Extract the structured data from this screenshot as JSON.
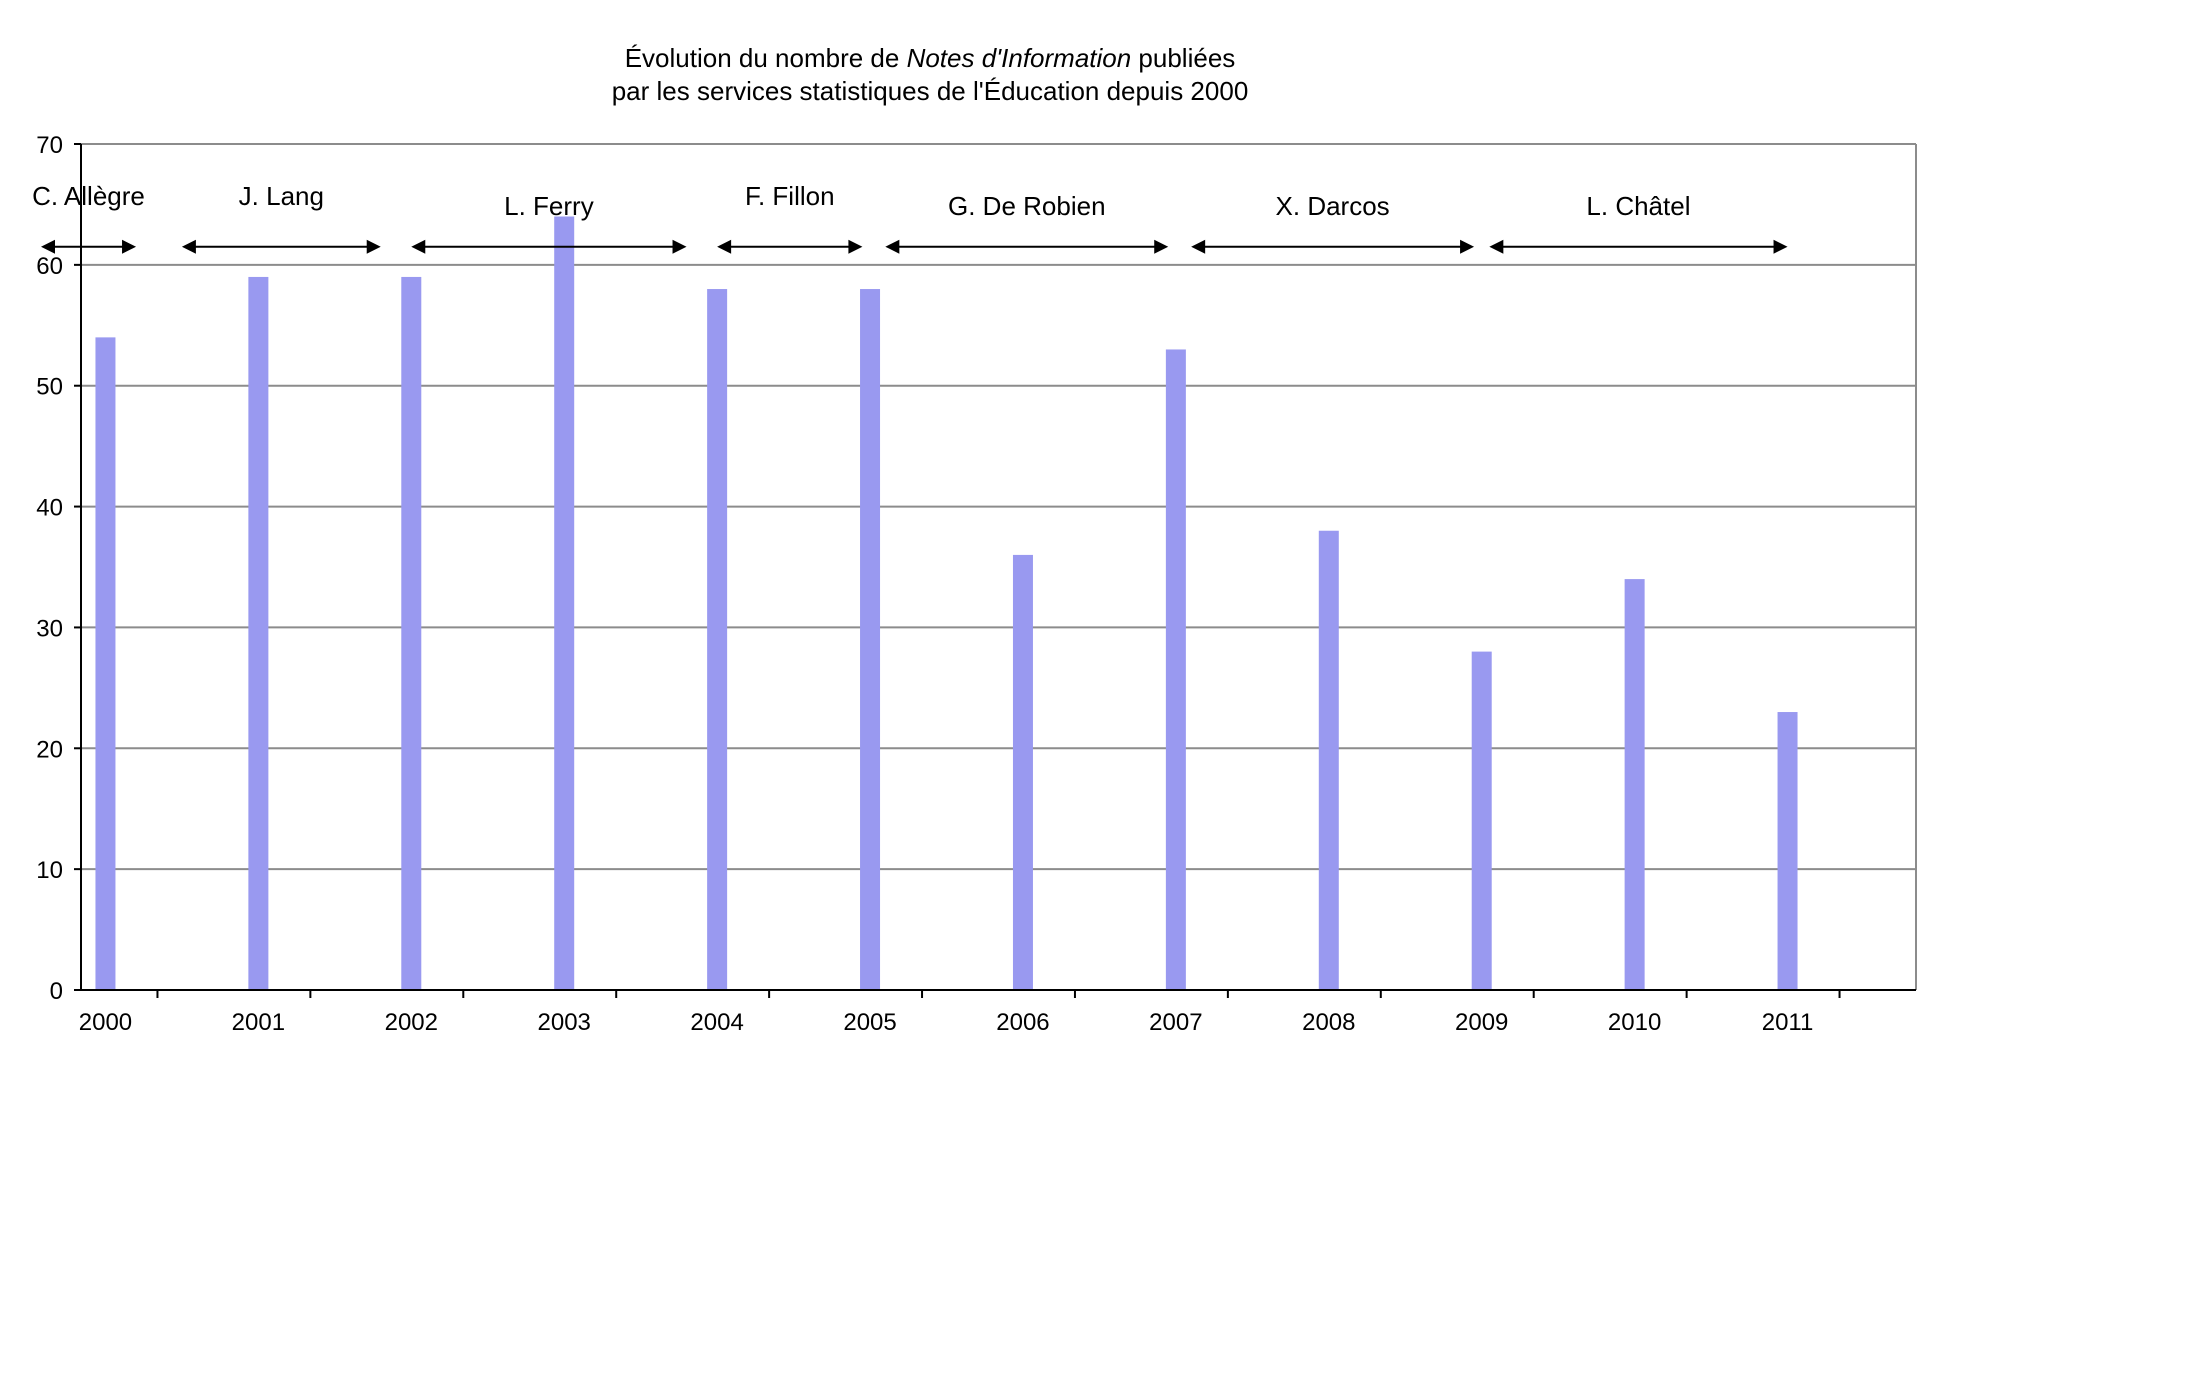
{
  "chart_data": {
    "type": "bar",
    "title_line1_part1": "Évolution du nombre de ",
    "title_line1_italic": "Notes d'Information",
    "title_line1_part2": " publiées",
    "title_line2": "par les services statistiques de l'Éducation depuis 2000",
    "xlabel": "",
    "ylabel": "",
    "categories": [
      "2000",
      "2001",
      "2002",
      "2003",
      "2004",
      "2005",
      "2006",
      "2007",
      "2008",
      "2009",
      "2010",
      "2011"
    ],
    "values": [
      54,
      59,
      59,
      64,
      58,
      58,
      36,
      53,
      38,
      28,
      34,
      23
    ],
    "ylim": [
      0,
      70
    ],
    "yticks": [
      "0",
      "10",
      "20",
      "30",
      "40",
      "50",
      "60",
      "70"
    ],
    "grid": "horizontal",
    "bar_color": "#9999f0",
    "ministers": [
      {
        "name": "C. Allègre",
        "start": -0.5,
        "end": 0.2
      },
      {
        "name": "J. Lang",
        "start": 0.5,
        "end": 1.8
      },
      {
        "name": "L. Ferry",
        "start": 2.0,
        "end": 3.8
      },
      {
        "name": "F. Fillon",
        "start": 4.0,
        "end": 4.95
      },
      {
        "name": "G. De Robien",
        "start": 5.1,
        "end": 6.95
      },
      {
        "name": "X. Darcos",
        "start": 7.1,
        "end": 8.95
      },
      {
        "name": "L. Châtel",
        "start": 9.05,
        "end": 11.0
      }
    ]
  }
}
